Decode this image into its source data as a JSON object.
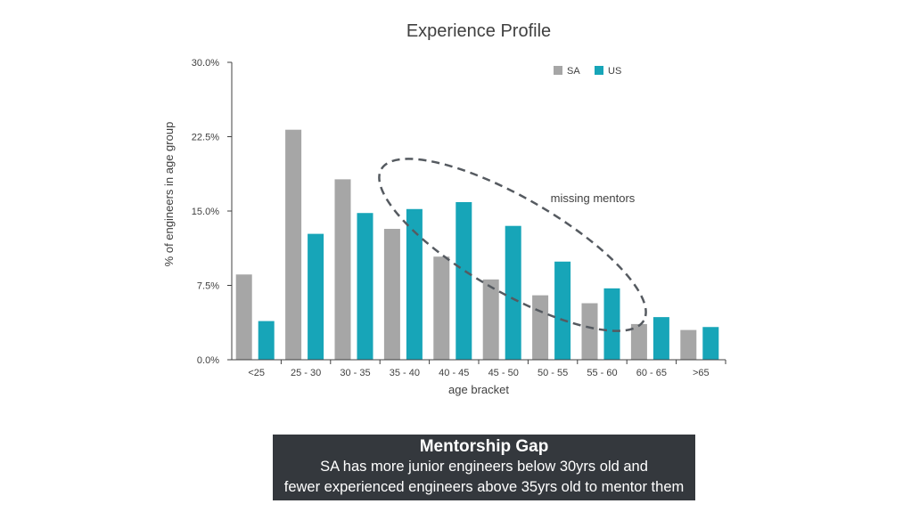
{
  "chart_data": {
    "type": "bar",
    "title": "Experience Profile",
    "xlabel": "age bracket",
    "ylabel": "% of engineers in age group",
    "categories": [
      "<25",
      "25 - 30",
      "30 - 35",
      "35 - 40",
      "40 - 45",
      "45 - 50",
      "50 - 55",
      "55 - 60",
      "60 - 65",
      ">65"
    ],
    "series": [
      {
        "name": "SA",
        "color": "#a6a6a6",
        "values": [
          8.6,
          23.2,
          18.2,
          13.2,
          10.4,
          8.1,
          6.5,
          5.7,
          3.6,
          3.0
        ]
      },
      {
        "name": "US",
        "color": "#17a5b8",
        "values": [
          3.9,
          12.7,
          14.8,
          15.2,
          15.9,
          13.5,
          9.9,
          7.2,
          4.3,
          3.3
        ]
      }
    ],
    "ylim": [
      0,
      30
    ],
    "yticks": [
      "0.0%",
      "7.5%",
      "15.0%",
      "22.5%",
      "30.0%"
    ],
    "legend_position": "top-right",
    "grid": false,
    "annotation": "missing mentors"
  },
  "caption": {
    "title": "Mentorship Gap",
    "line1": "SA has more junior engineers below 30yrs old and",
    "line2": "fewer experienced engineers above 35yrs old to mentor them"
  }
}
